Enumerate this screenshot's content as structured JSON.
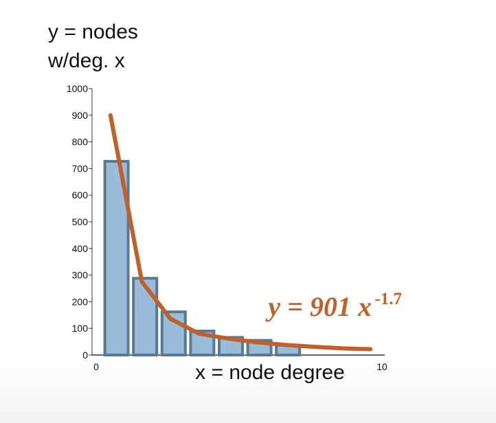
{
  "ylabel_lines": [
    "y = nodes",
    "w/deg. x"
  ],
  "xlabel": "x = node degree",
  "colors": {
    "bar_fill": "#9bbbdb",
    "bar_stroke": "#587a94",
    "fit_line": "#c0602a",
    "axis": "#333333",
    "text": "#111111"
  },
  "chart_data": {
    "type": "bar",
    "xlabel": "x = node degree",
    "ylabel": "y = nodes w/deg. x",
    "xlim": [
      0,
      10
    ],
    "ylim": [
      0,
      1000
    ],
    "x_tick_labels": [
      "0",
      "10"
    ],
    "y_ticks": [
      0,
      100,
      200,
      300,
      400,
      500,
      600,
      700,
      800,
      900,
      1000
    ],
    "grid": false,
    "legend": "none",
    "series": [
      {
        "type": "bar",
        "x": [
          1,
          2,
          3,
          4,
          5,
          6,
          7
        ],
        "values": [
          727,
          288,
          162,
          90,
          66,
          55,
          37
        ]
      },
      {
        "type": "line",
        "x": [
          0.5,
          1.6,
          2.6,
          3.6,
          4.6,
          5.6,
          6.6,
          7.6,
          8.6,
          9.6
        ],
        "values": [
          900,
          275,
          136,
          80,
          62,
          48,
          38,
          31,
          25,
          22
        ]
      }
    ],
    "annotations": [
      {
        "base": "y = 901 x",
        "exponent": "-1.7",
        "at_x": 6.5,
        "at_y": 235
      }
    ]
  }
}
